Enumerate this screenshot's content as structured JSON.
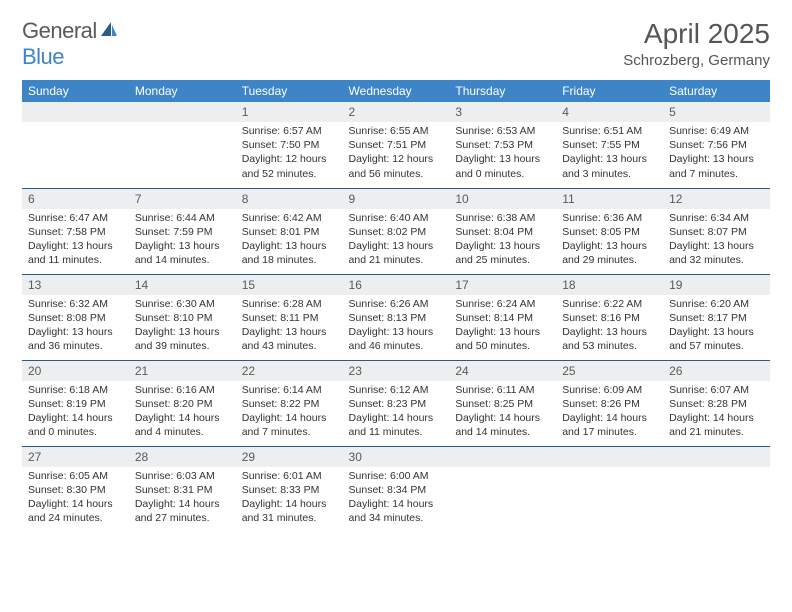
{
  "brand": {
    "part1": "General",
    "part2": "Blue"
  },
  "title": "April 2025",
  "location": "Schrozberg, Germany",
  "colors": {
    "header_bg": "#3d85c6",
    "header_text": "#ffffff",
    "daynum_bg": "#eceeef",
    "week_border": "#2b5a8a",
    "text": "#333333",
    "brand_gray": "#5a5a5a",
    "brand_blue": "#3d85c6"
  },
  "dayNames": [
    "Sunday",
    "Monday",
    "Tuesday",
    "Wednesday",
    "Thursday",
    "Friday",
    "Saturday"
  ],
  "weeks": [
    [
      {
        "n": "",
        "sr": "",
        "ss": "",
        "dl": ""
      },
      {
        "n": "",
        "sr": "",
        "ss": "",
        "dl": ""
      },
      {
        "n": "1",
        "sr": "Sunrise: 6:57 AM",
        "ss": "Sunset: 7:50 PM",
        "dl": "Daylight: 12 hours and 52 minutes."
      },
      {
        "n": "2",
        "sr": "Sunrise: 6:55 AM",
        "ss": "Sunset: 7:51 PM",
        "dl": "Daylight: 12 hours and 56 minutes."
      },
      {
        "n": "3",
        "sr": "Sunrise: 6:53 AM",
        "ss": "Sunset: 7:53 PM",
        "dl": "Daylight: 13 hours and 0 minutes."
      },
      {
        "n": "4",
        "sr": "Sunrise: 6:51 AM",
        "ss": "Sunset: 7:55 PM",
        "dl": "Daylight: 13 hours and 3 minutes."
      },
      {
        "n": "5",
        "sr": "Sunrise: 6:49 AM",
        "ss": "Sunset: 7:56 PM",
        "dl": "Daylight: 13 hours and 7 minutes."
      }
    ],
    [
      {
        "n": "6",
        "sr": "Sunrise: 6:47 AM",
        "ss": "Sunset: 7:58 PM",
        "dl": "Daylight: 13 hours and 11 minutes."
      },
      {
        "n": "7",
        "sr": "Sunrise: 6:44 AM",
        "ss": "Sunset: 7:59 PM",
        "dl": "Daylight: 13 hours and 14 minutes."
      },
      {
        "n": "8",
        "sr": "Sunrise: 6:42 AM",
        "ss": "Sunset: 8:01 PM",
        "dl": "Daylight: 13 hours and 18 minutes."
      },
      {
        "n": "9",
        "sr": "Sunrise: 6:40 AM",
        "ss": "Sunset: 8:02 PM",
        "dl": "Daylight: 13 hours and 21 minutes."
      },
      {
        "n": "10",
        "sr": "Sunrise: 6:38 AM",
        "ss": "Sunset: 8:04 PM",
        "dl": "Daylight: 13 hours and 25 minutes."
      },
      {
        "n": "11",
        "sr": "Sunrise: 6:36 AM",
        "ss": "Sunset: 8:05 PM",
        "dl": "Daylight: 13 hours and 29 minutes."
      },
      {
        "n": "12",
        "sr": "Sunrise: 6:34 AM",
        "ss": "Sunset: 8:07 PM",
        "dl": "Daylight: 13 hours and 32 minutes."
      }
    ],
    [
      {
        "n": "13",
        "sr": "Sunrise: 6:32 AM",
        "ss": "Sunset: 8:08 PM",
        "dl": "Daylight: 13 hours and 36 minutes."
      },
      {
        "n": "14",
        "sr": "Sunrise: 6:30 AM",
        "ss": "Sunset: 8:10 PM",
        "dl": "Daylight: 13 hours and 39 minutes."
      },
      {
        "n": "15",
        "sr": "Sunrise: 6:28 AM",
        "ss": "Sunset: 8:11 PM",
        "dl": "Daylight: 13 hours and 43 minutes."
      },
      {
        "n": "16",
        "sr": "Sunrise: 6:26 AM",
        "ss": "Sunset: 8:13 PM",
        "dl": "Daylight: 13 hours and 46 minutes."
      },
      {
        "n": "17",
        "sr": "Sunrise: 6:24 AM",
        "ss": "Sunset: 8:14 PM",
        "dl": "Daylight: 13 hours and 50 minutes."
      },
      {
        "n": "18",
        "sr": "Sunrise: 6:22 AM",
        "ss": "Sunset: 8:16 PM",
        "dl": "Daylight: 13 hours and 53 minutes."
      },
      {
        "n": "19",
        "sr": "Sunrise: 6:20 AM",
        "ss": "Sunset: 8:17 PM",
        "dl": "Daylight: 13 hours and 57 minutes."
      }
    ],
    [
      {
        "n": "20",
        "sr": "Sunrise: 6:18 AM",
        "ss": "Sunset: 8:19 PM",
        "dl": "Daylight: 14 hours and 0 minutes."
      },
      {
        "n": "21",
        "sr": "Sunrise: 6:16 AM",
        "ss": "Sunset: 8:20 PM",
        "dl": "Daylight: 14 hours and 4 minutes."
      },
      {
        "n": "22",
        "sr": "Sunrise: 6:14 AM",
        "ss": "Sunset: 8:22 PM",
        "dl": "Daylight: 14 hours and 7 minutes."
      },
      {
        "n": "23",
        "sr": "Sunrise: 6:12 AM",
        "ss": "Sunset: 8:23 PM",
        "dl": "Daylight: 14 hours and 11 minutes."
      },
      {
        "n": "24",
        "sr": "Sunrise: 6:11 AM",
        "ss": "Sunset: 8:25 PM",
        "dl": "Daylight: 14 hours and 14 minutes."
      },
      {
        "n": "25",
        "sr": "Sunrise: 6:09 AM",
        "ss": "Sunset: 8:26 PM",
        "dl": "Daylight: 14 hours and 17 minutes."
      },
      {
        "n": "26",
        "sr": "Sunrise: 6:07 AM",
        "ss": "Sunset: 8:28 PM",
        "dl": "Daylight: 14 hours and 21 minutes."
      }
    ],
    [
      {
        "n": "27",
        "sr": "Sunrise: 6:05 AM",
        "ss": "Sunset: 8:30 PM",
        "dl": "Daylight: 14 hours and 24 minutes."
      },
      {
        "n": "28",
        "sr": "Sunrise: 6:03 AM",
        "ss": "Sunset: 8:31 PM",
        "dl": "Daylight: 14 hours and 27 minutes."
      },
      {
        "n": "29",
        "sr": "Sunrise: 6:01 AM",
        "ss": "Sunset: 8:33 PM",
        "dl": "Daylight: 14 hours and 31 minutes."
      },
      {
        "n": "30",
        "sr": "Sunrise: 6:00 AM",
        "ss": "Sunset: 8:34 PM",
        "dl": "Daylight: 14 hours and 34 minutes."
      },
      {
        "n": "",
        "sr": "",
        "ss": "",
        "dl": ""
      },
      {
        "n": "",
        "sr": "",
        "ss": "",
        "dl": ""
      },
      {
        "n": "",
        "sr": "",
        "ss": "",
        "dl": ""
      }
    ]
  ]
}
